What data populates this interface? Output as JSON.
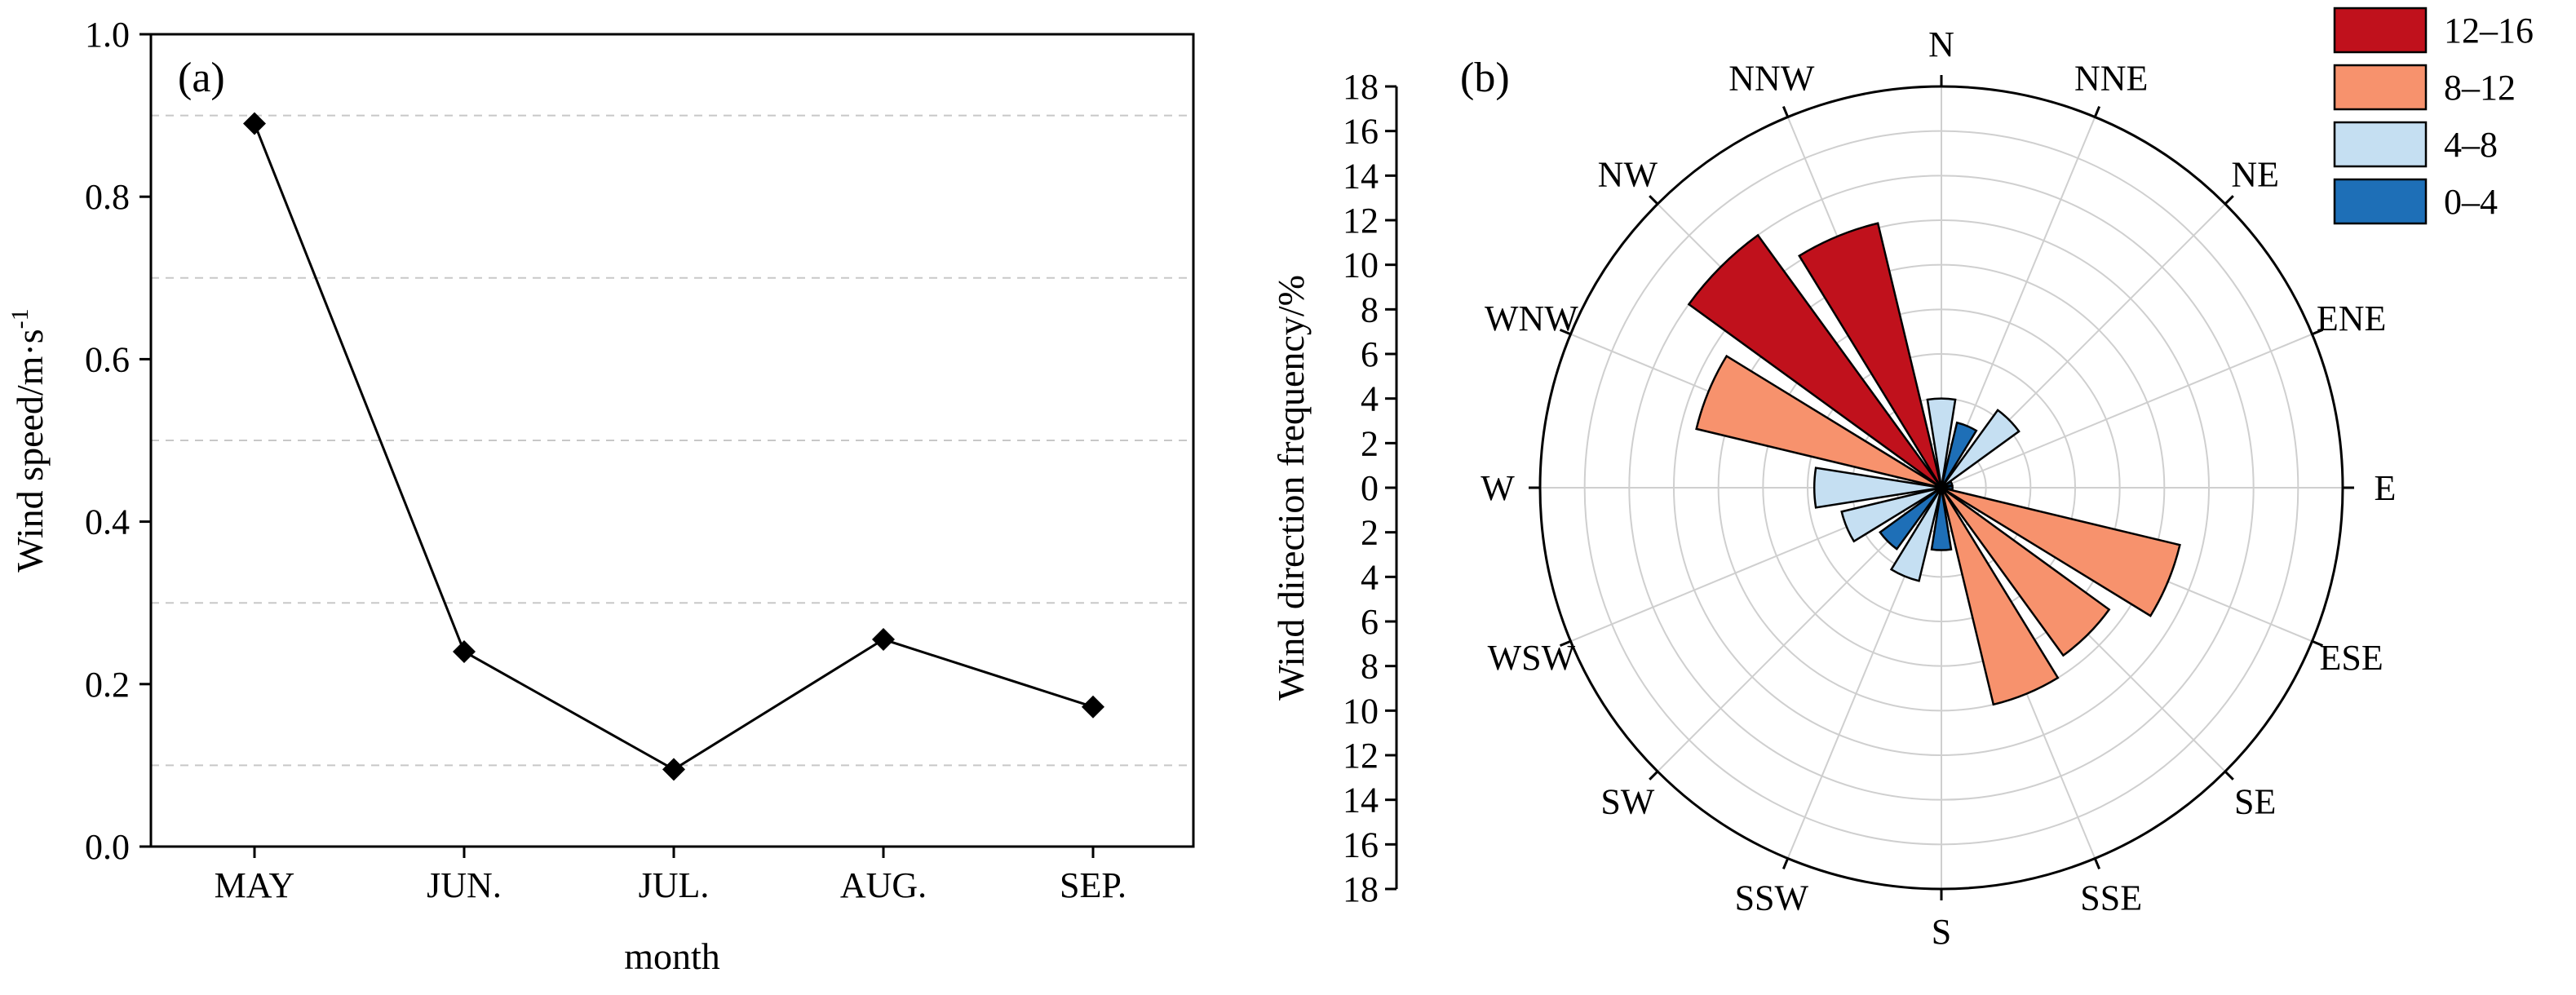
{
  "chart_data": [
    {
      "type": "line",
      "panel_label": "(a)",
      "title": "",
      "xlabel": "month",
      "ylabel_main": "Wind speed/m·s",
      "ylabel_sup": "-1",
      "categories": [
        "MAY",
        "JUN.",
        "JUL.",
        "AUG.",
        "SEP."
      ],
      "values": [
        0.89,
        0.24,
        0.095,
        0.255,
        0.172
      ],
      "ylim": [
        0.0,
        1.0
      ],
      "yticks": [
        "0.0",
        "0.2",
        "0.4",
        "0.6",
        "0.8",
        "1.0"
      ],
      "grid": "dashed horizontal at 0.1, 0.3, 0.5, 0.7, 0.9",
      "marker": "diamond",
      "colors": {
        "line": "#000000",
        "marker": "#000000",
        "grid": "#c8c8c8"
      }
    },
    {
      "type": "windrose",
      "panel_label": "(b)",
      "ylabel": "Wind direction frequency/%",
      "rlim": [
        0,
        18
      ],
      "rticks_up": [
        "18",
        "16",
        "14",
        "12",
        "10",
        "8",
        "6",
        "4",
        "2",
        "0"
      ],
      "rticks_down": [
        "2",
        "4",
        "6",
        "8",
        "10",
        "12",
        "14",
        "16",
        "18"
      ],
      "directions": [
        "N",
        "NNE",
        "NE",
        "ENE",
        "E",
        "ESE",
        "SE",
        "SSE",
        "S",
        "SSW",
        "SW",
        "WSW",
        "W",
        "WNW",
        "NW",
        "NNW"
      ],
      "bars": [
        {
          "direction": "N",
          "bin": "4–8",
          "value": 4.0
        },
        {
          "direction": "NNE",
          "bin": "0–4",
          "value": 3.0
        },
        {
          "direction": "NE",
          "bin": "4–8",
          "value": 4.3
        },
        {
          "direction": "ENE",
          "bin": "0–4",
          "value": 0.5
        },
        {
          "direction": "E",
          "bin": "0–4",
          "value": 0.5
        },
        {
          "direction": "ESE",
          "bin": "8–12",
          "value": 11.0
        },
        {
          "direction": "SE",
          "bin": "8–12",
          "value": 9.3
        },
        {
          "direction": "SSE",
          "bin": "8–12",
          "value": 10.0
        },
        {
          "direction": "S",
          "bin": "0–4",
          "value": 2.8
        },
        {
          "direction": "SSW",
          "bin": "4–8",
          "value": 4.3
        },
        {
          "direction": "SW",
          "bin": "0–4",
          "value": 3.4
        },
        {
          "direction": "WSW",
          "bin": "4–8",
          "value": 4.6
        },
        {
          "direction": "W",
          "bin": "4–8",
          "value": 5.7
        },
        {
          "direction": "WNW",
          "bin": "8–12",
          "value": 11.3
        },
        {
          "direction": "NW",
          "bin": "12–16",
          "value": 14.0
        },
        {
          "direction": "NNW",
          "bin": "12–16",
          "value": 12.2
        }
      ],
      "legend": [
        {
          "label": "12–16",
          "color": "#c0111c"
        },
        {
          "label": "8–12",
          "color": "#f7926d"
        },
        {
          "label": "4–8",
          "color": "#c5dff2"
        },
        {
          "label": "0–4",
          "color": "#1e6fb7"
        }
      ],
      "legend_position": "top-right"
    }
  ]
}
